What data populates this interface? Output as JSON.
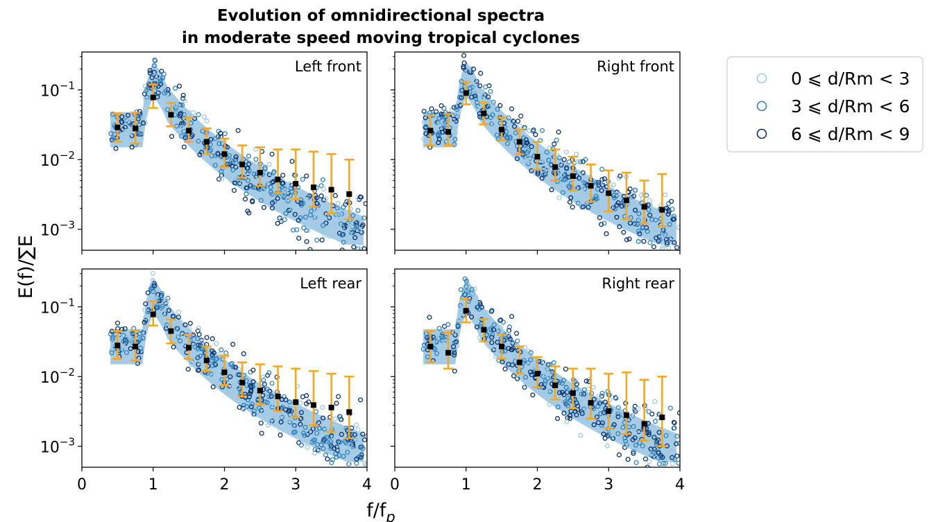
{
  "chart_data": {
    "type": "scatter",
    "title": "Evolution of omnidirectional spectra",
    "subtitle": "in moderate speed moving tropical cyclones",
    "xlabel": "f/f",
    "xlabel_sub": "p",
    "ylabel": "E(f)/∑E",
    "xlim": [
      0,
      4
    ],
    "ylim": [
      0.0005,
      0.35
    ],
    "yscale": "log",
    "x_ticks": [
      "0",
      "1",
      "2",
      "3",
      "4"
    ],
    "y_ticks": [
      {
        "value": 0.1,
        "base": "10",
        "exp": "−1"
      },
      {
        "value": 0.01,
        "base": "10",
        "exp": "−2"
      },
      {
        "value": 0.001,
        "base": "10",
        "exp": "−3"
      }
    ],
    "grid": false,
    "legend_position": "right",
    "legend": [
      {
        "label": "0 ⩽ d/Rm < 3",
        "color": "#9ecae1"
      },
      {
        "label": "3 ⩽ d/Rm < 6",
        "color": "#3182bd"
      },
      {
        "label": "6 ⩽ d/Rm < 9",
        "color": "#08306b"
      }
    ],
    "band_color": "#a6cbe6",
    "errorbar_color": "#f5a623",
    "mean_marker_color": "#000000",
    "panels": [
      {
        "label": "Left front",
        "x": [
          0.5,
          0.75,
          1.0,
          1.25,
          1.5,
          1.75,
          2.0,
          2.25,
          2.5,
          2.75,
          3.0,
          3.25,
          3.5,
          3.75
        ],
        "mean": [
          0.029,
          0.028,
          0.078,
          0.044,
          0.026,
          0.018,
          0.012,
          0.0085,
          0.0065,
          0.0052,
          0.0045,
          0.004,
          0.0037,
          0.0032
        ],
        "err_low": [
          0.018,
          0.017,
          0.055,
          0.03,
          0.018,
          0.012,
          0.0078,
          0.0055,
          0.0042,
          0.0033,
          0.0027,
          0.0021,
          0.0017,
          0.0014
        ],
        "err_high": [
          0.046,
          0.047,
          0.12,
          0.065,
          0.04,
          0.028,
          0.02,
          0.016,
          0.015,
          0.014,
          0.014,
          0.013,
          0.012,
          0.01
        ]
      },
      {
        "label": "Right front",
        "x": [
          0.5,
          0.75,
          1.0,
          1.25,
          1.5,
          1.75,
          2.0,
          2.25,
          2.5,
          2.75,
          3.0,
          3.25,
          3.5,
          3.75
        ],
        "mean": [
          0.026,
          0.025,
          0.09,
          0.046,
          0.027,
          0.018,
          0.011,
          0.0078,
          0.0058,
          0.0042,
          0.0033,
          0.0026,
          0.0021,
          0.0019
        ],
        "err_low": [
          0.016,
          0.016,
          0.062,
          0.032,
          0.019,
          0.012,
          0.0072,
          0.005,
          0.0036,
          0.0025,
          0.0018,
          0.0014,
          0.0012,
          0.0011
        ],
        "err_high": [
          0.043,
          0.045,
          0.13,
          0.066,
          0.04,
          0.027,
          0.018,
          0.014,
          0.011,
          0.0085,
          0.007,
          0.0065,
          0.005,
          0.0062
        ]
      },
      {
        "label": "Left rear",
        "x": [
          0.5,
          0.75,
          1.0,
          1.25,
          1.5,
          1.75,
          2.0,
          2.25,
          2.5,
          2.75,
          3.0,
          3.25,
          3.5,
          3.75
        ],
        "mean": [
          0.028,
          0.027,
          0.078,
          0.045,
          0.026,
          0.017,
          0.0115,
          0.0082,
          0.0063,
          0.0052,
          0.0043,
          0.0039,
          0.0036,
          0.0031
        ],
        "err_low": [
          0.018,
          0.017,
          0.054,
          0.03,
          0.018,
          0.012,
          0.0075,
          0.0052,
          0.004,
          0.0032,
          0.0026,
          0.002,
          0.0016,
          0.0013
        ],
        "err_high": [
          0.045,
          0.046,
          0.12,
          0.066,
          0.04,
          0.027,
          0.02,
          0.016,
          0.015,
          0.014,
          0.013,
          0.012,
          0.011,
          0.01
        ]
      },
      {
        "label": "Right rear",
        "x": [
          0.5,
          0.75,
          1.0,
          1.25,
          1.5,
          1.75,
          2.0,
          2.25,
          2.5,
          2.75,
          3.0,
          3.25,
          3.5,
          3.75
        ],
        "mean": [
          0.027,
          0.022,
          0.088,
          0.047,
          0.027,
          0.016,
          0.011,
          0.0075,
          0.0058,
          0.0042,
          0.0032,
          0.0028,
          0.0021,
          0.0026
        ],
        "err_low": [
          0.016,
          0.013,
          0.06,
          0.032,
          0.018,
          0.011,
          0.007,
          0.0047,
          0.0035,
          0.0025,
          0.0018,
          0.0015,
          0.0012,
          0.001
        ],
        "err_high": [
          0.045,
          0.043,
          0.13,
          0.067,
          0.04,
          0.027,
          0.019,
          0.014,
          0.013,
          0.013,
          0.011,
          0.0115,
          0.009,
          0.01
        ]
      }
    ]
  }
}
